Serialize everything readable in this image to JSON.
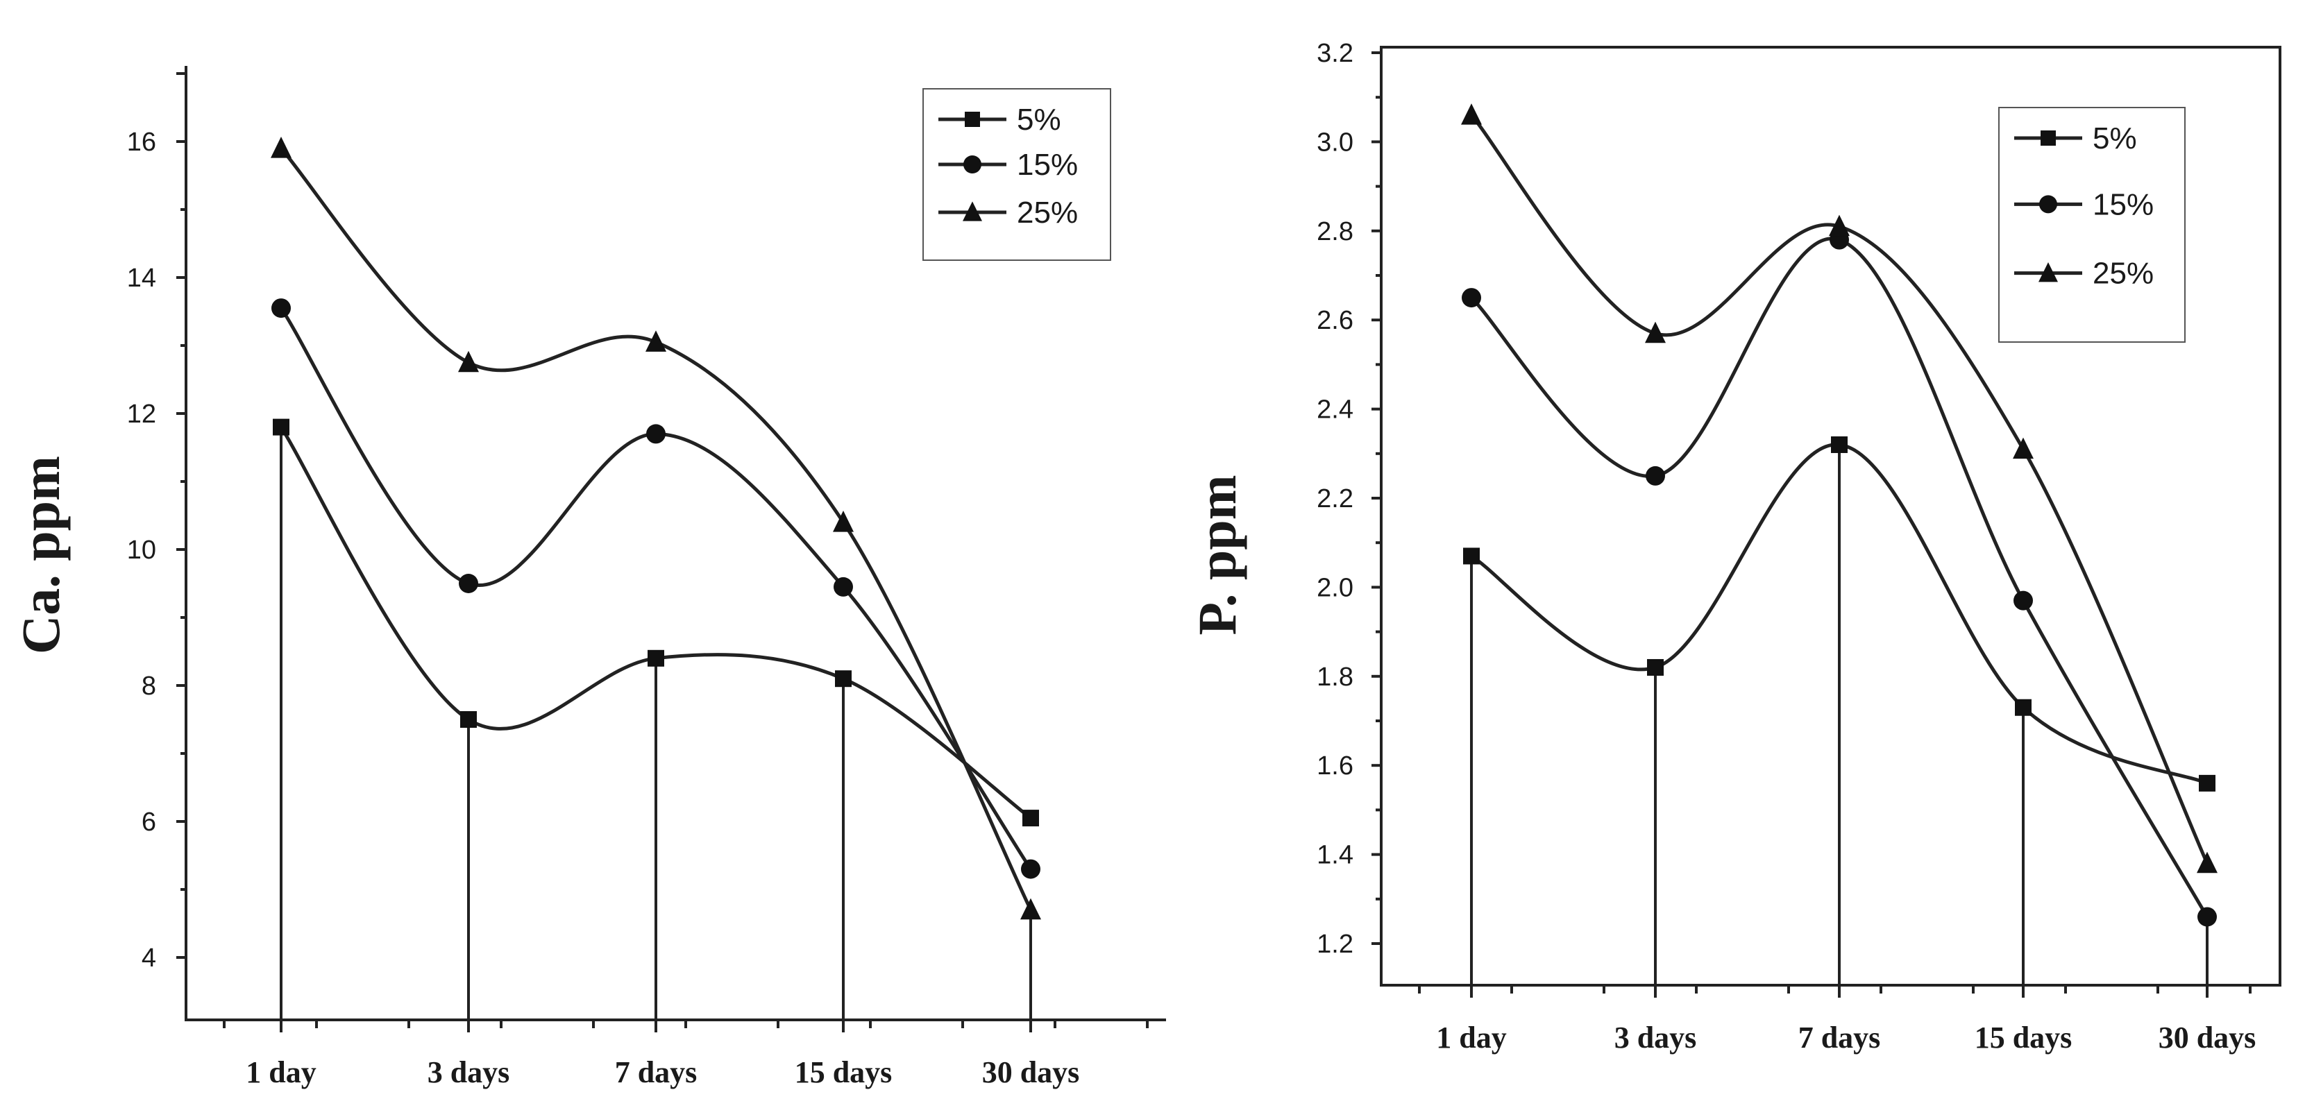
{
  "chart_data": [
    {
      "type": "line",
      "title": "",
      "xlabel": "",
      "ylabel": "Ca. ppm",
      "categories": [
        "1 day",
        "3 days",
        "7 days",
        "15 days",
        "30 days"
      ],
      "ylim": [
        3,
        17
      ],
      "yticks": [
        "4",
        "6",
        "8",
        "10",
        "12",
        "14",
        "16"
      ],
      "ytick_values": [
        4,
        6,
        8,
        10,
        12,
        14,
        16
      ],
      "legend_position": "top-right",
      "series": [
        {
          "name": "5%",
          "marker": "square",
          "values": [
            11.8,
            7.5,
            8.4,
            8.1,
            6.05
          ]
        },
        {
          "name": "15%",
          "marker": "circle",
          "values": [
            13.55,
            9.5,
            11.7,
            9.45,
            5.3
          ]
        },
        {
          "name": "25%",
          "marker": "triangle",
          "values": [
            15.9,
            12.75,
            13.05,
            10.4,
            4.7
          ]
        }
      ]
    },
    {
      "type": "line",
      "title": "",
      "xlabel": "",
      "ylabel": "P. ppm",
      "categories": [
        "1 day",
        "3 days",
        "7 days",
        "15 days",
        "30 days"
      ],
      "ylim": [
        1.1,
        3.2
      ],
      "yticks": [
        "1.2",
        "1.4",
        "1.6",
        "1.8",
        "2.0",
        "2.2",
        "2.4",
        "2.6",
        "2.8",
        "3.0",
        "3.2"
      ],
      "ytick_values": [
        1.2,
        1.4,
        1.6,
        1.8,
        2.0,
        2.2,
        2.4,
        2.6,
        2.8,
        3.0,
        3.2
      ],
      "legend_position": "top-right",
      "series": [
        {
          "name": "5%",
          "marker": "square",
          "values": [
            2.07,
            1.82,
            2.32,
            1.73,
            1.56
          ]
        },
        {
          "name": "15%",
          "marker": "circle",
          "values": [
            2.65,
            2.25,
            2.78,
            1.97,
            1.26
          ]
        },
        {
          "name": "25%",
          "marker": "triangle",
          "values": [
            3.06,
            2.57,
            2.81,
            2.31,
            1.38
          ]
        }
      ]
    }
  ]
}
